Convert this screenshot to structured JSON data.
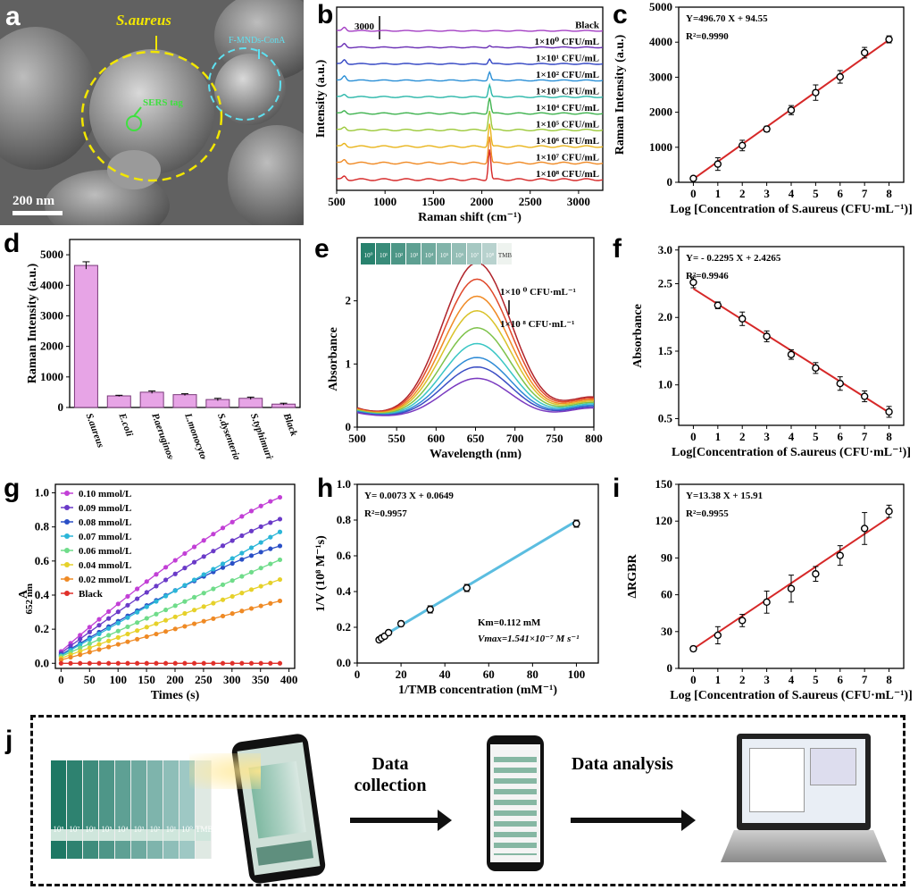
{
  "panel_labels": {
    "a": "a",
    "b": "b",
    "c": "c",
    "d": "d",
    "e": "e",
    "f": "f",
    "g": "g",
    "h": "h",
    "i": "i",
    "j": "j"
  },
  "sem": {
    "saureus": "S.aureus",
    "fmnd": "F-MNDs-ConA",
    "sers": "SERS tag",
    "scale": "200 nm"
  },
  "colors": {
    "red_line": "#d62828",
    "blue_line": "#5bbde0",
    "pink_bar": "#e7a4e6",
    "teal": "#2a9d86"
  },
  "j": {
    "data_collection": "Data collection",
    "data_analysis": "Data analysis",
    "tubes": [
      "10⁸",
      "10⁷",
      "10⁶",
      "10⁵",
      "10⁴",
      "10³",
      "10²",
      "10¹",
      "10⁰",
      "TMB"
    ]
  },
  "chart_data": [
    {
      "id": "b",
      "type": "line",
      "title": "",
      "xlabel": "Raman shift (cm⁻¹)",
      "ylabel": "Intensity (a.u.)",
      "xlim": [
        500,
        3250
      ],
      "xticks": [
        500,
        1000,
        1500,
        2000,
        2500,
        3000
      ],
      "scale_bar": "3000",
      "series": [
        {
          "name": "1×10⁸ CFU/mL",
          "color": "#d62828",
          "peak": 1.0
        },
        {
          "name": "1×10⁷ CFU/mL",
          "color": "#f08a24",
          "peak": 0.88
        },
        {
          "name": "1×10⁶ CFU/mL",
          "color": "#e9b419",
          "peak": 0.76
        },
        {
          "name": "1×10⁵ CFU/mL",
          "color": "#9cc93a",
          "peak": 0.64
        },
        {
          "name": "1×10⁴ CFU/mL",
          "color": "#3fb34f",
          "peak": 0.52
        },
        {
          "name": "1×10³ CFU/mL",
          "color": "#2ab7a9",
          "peak": 0.4
        },
        {
          "name": "1×10² CFU/mL",
          "color": "#2a8fd6",
          "peak": 0.28
        },
        {
          "name": "1×10¹ CFU/mL",
          "color": "#3346c4",
          "peak": 0.16
        },
        {
          "name": "1×10⁰ CFU/mL",
          "color": "#6a2fb5",
          "peak": 0.06
        },
        {
          "name": "Black",
          "color": "#a43fc4",
          "peak": 0.0
        }
      ]
    },
    {
      "id": "c",
      "type": "scatter",
      "xlabel": "Log [Concentration of S.aureus (CFU·mL⁻¹)]",
      "ylabel": "Raman Intensity (a.u.)",
      "x": [
        0,
        1,
        2,
        3,
        4,
        5,
        6,
        7,
        8
      ],
      "y": [
        110,
        520,
        1050,
        1520,
        2060,
        2560,
        3010,
        3700,
        4080
      ],
      "err": [
        60,
        180,
        150,
        80,
        130,
        220,
        180,
        150,
        100
      ],
      "ylim": [
        0,
        5000
      ],
      "yticks": [
        0,
        1000,
        2000,
        3000,
        4000,
        5000
      ],
      "eq": "Y=496.70 X + 94.55",
      "r2": "R²=0.9990",
      "fit": [
        496.7,
        94.55
      ]
    },
    {
      "id": "d",
      "type": "bar",
      "ylabel": "Raman Intensity (a.u.)",
      "categories": [
        "S.aureus",
        "E.coli",
        "P.aeruginosa",
        "L.monocytogenes",
        "S.dysenteriae",
        "S.typhimurium",
        "Black"
      ],
      "values": [
        4650,
        380,
        500,
        420,
        260,
        300,
        110
      ],
      "err": [
        120,
        20,
        40,
        30,
        40,
        40,
        30
      ],
      "ylim": [
        0,
        5500
      ],
      "yticks": [
        0,
        1000,
        2000,
        3000,
        4000,
        5000
      ]
    },
    {
      "id": "e",
      "type": "line",
      "xlabel": "Wavelength (nm)",
      "ylabel": "Absorbance",
      "xlim": [
        500,
        800
      ],
      "ylim": [
        0,
        3
      ],
      "xticks": [
        500,
        550,
        600,
        650,
        700,
        750,
        800
      ],
      "yticks": [
        0,
        1,
        2
      ],
      "legend_top": "1×10 ⁰ CFU·mL⁻¹",
      "legend_bottom": "1×10 ⁸ CFU·mL⁻¹",
      "tubes": [
        "10⁰",
        "10¹",
        "10²",
        "10³",
        "10⁴",
        "10⁵",
        "10⁶",
        "10⁷",
        "10⁸",
        "TMB"
      ],
      "peaks": [
        2.48,
        2.22,
        1.95,
        1.72,
        1.45,
        1.2,
        0.98,
        0.83,
        0.65
      ],
      "colors": [
        "#b0232a",
        "#e0482a",
        "#f08a24",
        "#d9c229",
        "#7ec24a",
        "#39c6c4",
        "#2e8bd6",
        "#3b4dc4",
        "#7a3ac0"
      ]
    },
    {
      "id": "f",
      "type": "scatter",
      "xlabel": "Log[Concentration of S.aureus (CFU·mL⁻¹)]",
      "ylabel": "Absorbance",
      "x": [
        0,
        1,
        2,
        3,
        4,
        5,
        6,
        7,
        8
      ],
      "y": [
        2.52,
        2.18,
        1.98,
        1.72,
        1.45,
        1.25,
        1.02,
        0.83,
        0.6
      ],
      "err": [
        0.08,
        0.05,
        0.1,
        0.08,
        0.07,
        0.08,
        0.1,
        0.08,
        0.08
      ],
      "ylim": [
        0.4,
        3.05
      ],
      "yticks": [
        0.5,
        1.0,
        1.5,
        2.0,
        2.5,
        3.0
      ],
      "eq": "Y= - 0.2295 X + 2.4265",
      "r2": "R²=0.9946",
      "fit": [
        -0.2295,
        2.4265
      ]
    },
    {
      "id": "g",
      "type": "line",
      "xlabel": "Times (s)",
      "ylabel": "A652 nm",
      "ylabel_main": "A",
      "ylabel_sub": "652 nm",
      "xlim": [
        -10,
        410
      ],
      "ylim": [
        -0.03,
        1.05
      ],
      "xticks": [
        0,
        50,
        100,
        150,
        200,
        250,
        300,
        350,
        400
      ],
      "yticks": [
        0.0,
        0.2,
        0.4,
        0.6,
        0.8,
        1.0
      ],
      "series": [
        {
          "name": "0.10 mmol/L",
          "color": "#c23fd6",
          "end": 0.99,
          "start": 0.07,
          "marker": "square"
        },
        {
          "name": "0.09 mmol/L",
          "color": "#6a3ac8",
          "end": 0.86,
          "start": 0.06,
          "marker": "circle"
        },
        {
          "name": "0.08 mmol/L",
          "color": "#2a4fc6",
          "end": 0.7,
          "start": 0.05,
          "marker": "triangle"
        },
        {
          "name": "0.07 mmol/L",
          "color": "#2bb6d8",
          "end": 0.8,
          "start": 0.045,
          "marker": "tridown"
        },
        {
          "name": "0.06 mmol/L",
          "color": "#6fdc8a",
          "end": 0.63,
          "start": 0.04,
          "marker": "diamond"
        },
        {
          "name": "0.04 mmol/L",
          "color": "#e6d12a",
          "end": 0.51,
          "start": 0.03,
          "marker": "triangle"
        },
        {
          "name": "0.02 mmol/L",
          "color": "#ef8a25",
          "end": 0.38,
          "start": 0.02,
          "marker": "triright"
        },
        {
          "name": "Black",
          "color": "#e0302a",
          "end": 0.0,
          "start": 0.0,
          "marker": "circle"
        }
      ]
    },
    {
      "id": "h",
      "type": "scatter",
      "xlabel": "1/TMB concentration (mM⁻¹)",
      "ylabel": "1/V (10⁸ M⁻¹s)",
      "x": [
        10,
        11.1,
        12.5,
        14.3,
        20,
        33.3,
        50,
        100
      ],
      "y": [
        0.13,
        0.14,
        0.15,
        0.17,
        0.22,
        0.3,
        0.42,
        0.78
      ],
      "err": [
        0.01,
        0.01,
        0.01,
        0.01,
        0.015,
        0.02,
        0.02,
        0.02
      ],
      "xlim": [
        0,
        110
      ],
      "ylim": [
        0,
        1.0
      ],
      "xticks": [
        0,
        20,
        40,
        60,
        80,
        100
      ],
      "yticks": [
        0.0,
        0.2,
        0.4,
        0.6,
        0.8,
        1.0
      ],
      "eq": "Y= 0.0073 X + 0.0649",
      "r2": "R²=0.9957",
      "km": "Km=0.112 mM",
      "vmax": "Vmax=1.541×10⁻⁷ M s⁻¹",
      "fit": [
        0.0073,
        0.0649
      ]
    },
    {
      "id": "i",
      "type": "scatter",
      "xlabel": "Log [Concentration of S.aureus (CFU·mL⁻¹)]",
      "ylabel": "ΔRGBR",
      "x": [
        0,
        1,
        2,
        3,
        4,
        5,
        6,
        7,
        8
      ],
      "y": [
        16,
        27,
        39,
        54,
        65,
        77,
        92,
        114,
        128
      ],
      "err": [
        2,
        7,
        5,
        9,
        11,
        6,
        8,
        13,
        5
      ],
      "ylim": [
        0,
        150
      ],
      "yticks": [
        0,
        30,
        60,
        90,
        120,
        150
      ],
      "eq": "Y=13.38 X + 15.91",
      "r2": "R²=0.9955",
      "fit": [
        13.38,
        15.91
      ]
    }
  ]
}
